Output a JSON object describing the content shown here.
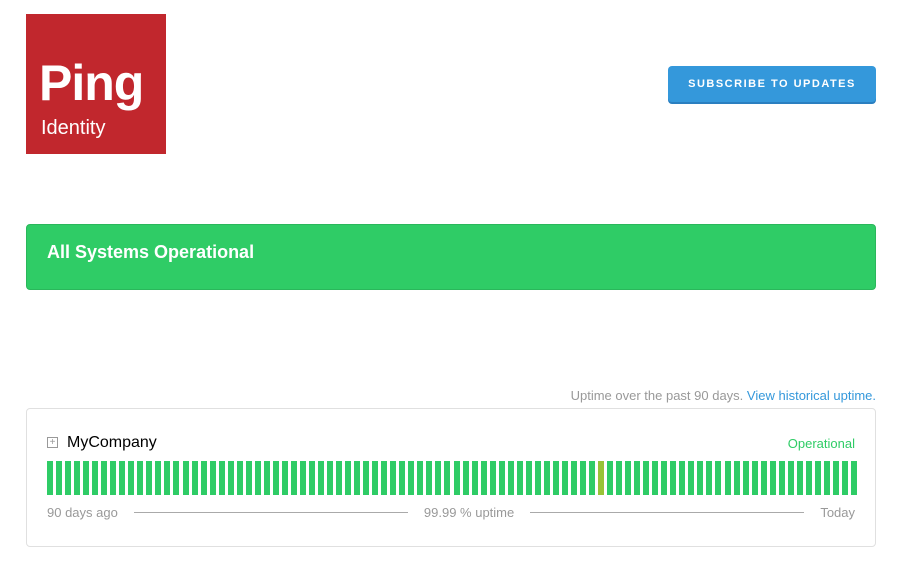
{
  "logo": {
    "text1": "Ping",
    "text2": "Identity"
  },
  "header": {
    "subscribe_label": "SUBSCRIBE TO UPDATES"
  },
  "banner": {
    "text": "All Systems Operational",
    "color": "#2fcc66"
  },
  "uptime_note": {
    "text": "Uptime over the past 90 days. ",
    "link": "View historical uptime."
  },
  "component": {
    "name": "MyCompany",
    "status": "Operational",
    "days": 90,
    "degraded_day_index": 61,
    "colors": {
      "ok": "#2fcc66",
      "degraded": "#98c337"
    },
    "left_label": "90 days ago",
    "uptime_label": "99.99 % uptime",
    "right_label": "Today"
  }
}
